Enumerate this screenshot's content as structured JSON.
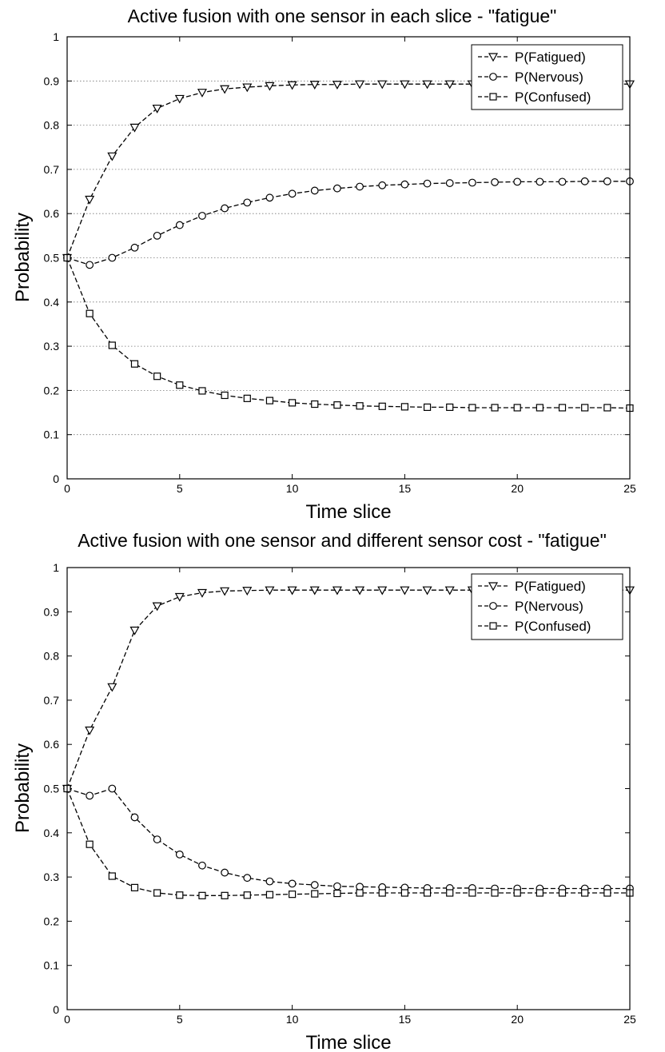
{
  "chart_data": [
    {
      "type": "line",
      "title": "Active fusion with one sensor in each slice - \"fatigue\"",
      "xlabel": "Time slice",
      "ylabel": "Probability",
      "xlim": [
        0,
        25
      ],
      "ylim": [
        0,
        1
      ],
      "x_ticks": [
        "0",
        "5",
        "10",
        "15",
        "20",
        "25"
      ],
      "y_ticks": [
        "0",
        "0.1",
        "0.2",
        "0.3",
        "0.4",
        "0.5",
        "0.6",
        "0.7",
        "0.8",
        "0.9",
        "1"
      ],
      "grid": "horizontal dotted",
      "legend_position": "top-right",
      "x": [
        0,
        1,
        2,
        3,
        4,
        5,
        6,
        7,
        8,
        9,
        10,
        11,
        12,
        13,
        14,
        15,
        16,
        17,
        18,
        19,
        20,
        21,
        22,
        23,
        24,
        25
      ],
      "series": [
        {
          "name": "P(Fatigued)",
          "marker": "triangle-down",
          "values": [
            0.5,
            0.632,
            0.73,
            0.795,
            0.838,
            0.86,
            0.874,
            0.882,
            0.886,
            0.889,
            0.891,
            0.892,
            0.892,
            0.893,
            0.893,
            0.893,
            0.893,
            0.893,
            0.893,
            0.893,
            0.893,
            0.893,
            0.893,
            0.893,
            0.893,
            0.893
          ]
        },
        {
          "name": "P(Nervous)",
          "marker": "circle",
          "values": [
            0.5,
            0.484,
            0.5,
            0.523,
            0.55,
            0.574,
            0.595,
            0.612,
            0.625,
            0.636,
            0.645,
            0.652,
            0.657,
            0.661,
            0.664,
            0.666,
            0.668,
            0.669,
            0.67,
            0.671,
            0.672,
            0.672,
            0.672,
            0.673,
            0.673,
            0.673
          ]
        },
        {
          "name": "P(Confused)",
          "marker": "square",
          "values": [
            0.5,
            0.374,
            0.302,
            0.26,
            0.232,
            0.212,
            0.199,
            0.189,
            0.182,
            0.177,
            0.172,
            0.169,
            0.167,
            0.165,
            0.164,
            0.163,
            0.162,
            0.162,
            0.161,
            0.161,
            0.161,
            0.161,
            0.161,
            0.161,
            0.161,
            0.16
          ]
        }
      ]
    },
    {
      "type": "line",
      "title": "Active fusion with one sensor and different sensor cost - \"fatigue\"",
      "xlabel": "Time slice",
      "ylabel": "Probability",
      "xlim": [
        0,
        25
      ],
      "ylim": [
        0,
        1
      ],
      "x_ticks": [
        "0",
        "5",
        "10",
        "15",
        "20",
        "25"
      ],
      "y_ticks": [
        "0",
        "0.1",
        "0.2",
        "0.3",
        "0.4",
        "0.5",
        "0.6",
        "0.7",
        "0.8",
        "0.9",
        "1"
      ],
      "grid": "none",
      "legend_position": "top-right",
      "x": [
        0,
        1,
        2,
        3,
        4,
        5,
        6,
        7,
        8,
        9,
        10,
        11,
        12,
        13,
        14,
        15,
        16,
        17,
        18,
        19,
        20,
        21,
        22,
        23,
        24,
        25
      ],
      "series": [
        {
          "name": "P(Fatigued)",
          "marker": "triangle-down",
          "values": [
            0.5,
            0.632,
            0.73,
            0.858,
            0.913,
            0.934,
            0.943,
            0.947,
            0.948,
            0.949,
            0.949,
            0.949,
            0.949,
            0.949,
            0.949,
            0.949,
            0.949,
            0.949,
            0.949,
            0.949,
            0.949,
            0.949,
            0.949,
            0.949,
            0.949,
            0.949
          ]
        },
        {
          "name": "P(Nervous)",
          "marker": "circle",
          "values": [
            0.5,
            0.484,
            0.5,
            0.435,
            0.385,
            0.351,
            0.326,
            0.31,
            0.298,
            0.29,
            0.285,
            0.282,
            0.279,
            0.278,
            0.277,
            0.276,
            0.275,
            0.275,
            0.275,
            0.274,
            0.274,
            0.274,
            0.274,
            0.274,
            0.274,
            0.274
          ]
        },
        {
          "name": "P(Confused)",
          "marker": "square",
          "values": [
            0.5,
            0.374,
            0.302,
            0.276,
            0.264,
            0.259,
            0.258,
            0.258,
            0.259,
            0.26,
            0.261,
            0.262,
            0.263,
            0.264,
            0.264,
            0.264,
            0.264,
            0.264,
            0.264,
            0.264,
            0.264,
            0.264,
            0.264,
            0.264,
            0.264,
            0.264
          ]
        }
      ]
    }
  ]
}
